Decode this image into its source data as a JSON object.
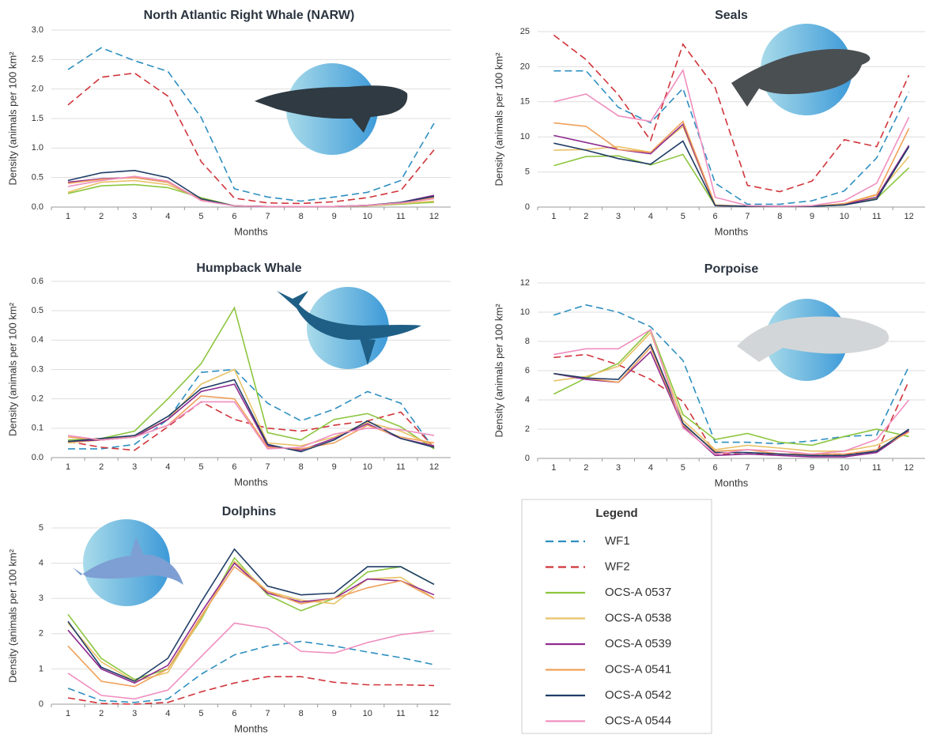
{
  "chart_data": [
    {
      "type": "line",
      "title": "North Atlantic Right Whale (NARW)",
      "y_label": "Density (animals per 100 km²",
      "x_label": "Months",
      "categories": [
        "1",
        "2",
        "3",
        "4",
        "5",
        "6",
        "7",
        "8",
        "9",
        "10",
        "11",
        "12"
      ],
      "ylim": [
        0,
        3
      ],
      "yticks": [
        {
          "value": 0,
          "label": "0.0"
        },
        0.5,
        {
          "value": 1,
          "label": "1.0"
        },
        1.5,
        {
          "value": 2,
          "label": "2.0"
        },
        2.5,
        {
          "value": 3,
          "label": "3.0"
        }
      ],
      "grid": true,
      "series": [
        {
          "values": [
            2.33,
            2.7,
            2.48,
            2.3,
            1.52,
            0.31,
            0.17,
            0.1,
            0.17,
            0.25,
            0.45,
            1.42
          ]
        },
        {
          "values": [
            1.73,
            2.2,
            2.27,
            1.88,
            0.77,
            0.15,
            0.07,
            0.06,
            0.09,
            0.16,
            0.28,
            0.97
          ]
        },
        {
          "values": [
            0.23,
            0.36,
            0.38,
            0.33,
            0.16,
            0.02,
            0.01,
            0.01,
            0.01,
            0.02,
            0.05,
            0.08
          ]
        },
        {
          "values": [
            0.25,
            0.42,
            0.45,
            0.38,
            0.14,
            0.02,
            0.01,
            0.01,
            0.01,
            0.02,
            0.06,
            0.1
          ]
        },
        {
          "values": [
            0.42,
            0.48,
            0.5,
            0.42,
            0.12,
            0.02,
            0.01,
            0.01,
            0.01,
            0.03,
            0.08,
            0.2
          ]
        },
        {
          "values": [
            0.4,
            0.47,
            0.5,
            0.42,
            0.13,
            0.02,
            0.01,
            0.01,
            0.01,
            0.03,
            0.07,
            0.16
          ]
        },
        {
          "values": [
            0.45,
            0.58,
            0.62,
            0.5,
            0.14,
            0.02,
            0.01,
            0.01,
            0.01,
            0.03,
            0.08,
            0.18
          ]
        },
        {
          "values": [
            0.35,
            0.45,
            0.52,
            0.44,
            0.11,
            0.02,
            0.01,
            0.01,
            0.01,
            0.03,
            0.07,
            0.14
          ]
        }
      ]
    },
    {
      "type": "line",
      "title": "Seals",
      "y_label": "Density (animals per 100 km²",
      "x_label": "Months",
      "categories": [
        "1",
        "2",
        "3",
        "4",
        "5",
        "6",
        "7",
        "8",
        "9",
        "10",
        "11",
        "12"
      ],
      "ylim": [
        0,
        25
      ],
      "yticks": [
        0,
        5,
        10,
        15,
        20,
        25
      ],
      "grid": true,
      "series": [
        {
          "values": [
            19.4,
            19.4,
            14.2,
            12.0,
            16.9,
            3.4,
            0.4,
            0.4,
            0.9,
            2.3,
            7.0,
            16.4
          ]
        },
        {
          "values": [
            24.5,
            21.0,
            16.0,
            9.5,
            23.2,
            17.0,
            3.1,
            2.2,
            3.7,
            9.6,
            8.6,
            18.8
          ]
        },
        {
          "values": [
            5.9,
            7.2,
            7.3,
            6.0,
            7.5,
            0.2,
            0.1,
            0.1,
            0.1,
            0.3,
            1.2,
            5.6
          ]
        },
        {
          "values": [
            8.1,
            8.2,
            8.6,
            7.8,
            11.5,
            0.2,
            0.1,
            0.1,
            0.1,
            0.4,
            1.7,
            7.2
          ]
        },
        {
          "values": [
            10.2,
            9.2,
            8.2,
            7.6,
            11.8,
            0.2,
            0.1,
            0.1,
            0.1,
            0.4,
            1.4,
            8.8
          ]
        },
        {
          "values": [
            12.0,
            11.5,
            8.2,
            7.8,
            12.2,
            0.3,
            0.1,
            0.1,
            0.1,
            0.5,
            1.8,
            11.2
          ]
        },
        {
          "values": [
            9.1,
            8.1,
            6.9,
            6.1,
            9.4,
            0.2,
            0.1,
            0.1,
            0.1,
            0.3,
            1.1,
            8.6
          ]
        },
        {
          "values": [
            15.0,
            16.1,
            13.0,
            12.2,
            19.5,
            1.4,
            0.2,
            0.1,
            0.2,
            0.9,
            3.4,
            12.8
          ]
        }
      ]
    },
    {
      "type": "line",
      "title": "Humpback Whale",
      "y_label": "Density (animals per 100 km²",
      "x_label": "Months",
      "categories": [
        "1",
        "2",
        "3",
        "4",
        "5",
        "6",
        "7",
        "8",
        "9",
        "10",
        "11",
        "12"
      ],
      "ylim": [
        0,
        0.6
      ],
      "yticks": [
        {
          "value": 0,
          "label": "0.0"
        },
        0.1,
        0.2,
        0.3,
        0.4,
        0.5,
        0.6
      ],
      "grid": true,
      "series": [
        {
          "values": [
            0.03,
            0.03,
            0.045,
            0.13,
            0.29,
            0.3,
            0.185,
            0.125,
            0.165,
            0.225,
            0.185,
            0.03
          ]
        },
        {
          "values": [
            0.055,
            0.035,
            0.025,
            0.105,
            0.19,
            0.13,
            0.1,
            0.09,
            0.11,
            0.125,
            0.155,
            0.035
          ]
        },
        {
          "values": [
            0.06,
            0.065,
            0.09,
            0.2,
            0.32,
            0.51,
            0.085,
            0.06,
            0.13,
            0.15,
            0.105,
            0.03
          ]
        },
        {
          "values": [
            0.05,
            0.06,
            0.075,
            0.13,
            0.25,
            0.3,
            0.05,
            0.04,
            0.07,
            0.12,
            0.09,
            0.04
          ]
        },
        {
          "values": [
            0.055,
            0.06,
            0.07,
            0.13,
            0.225,
            0.25,
            0.04,
            0.025,
            0.065,
            0.115,
            0.065,
            0.04
          ]
        },
        {
          "values": [
            0.07,
            0.06,
            0.07,
            0.11,
            0.21,
            0.2,
            0.035,
            0.03,
            0.05,
            0.11,
            0.07,
            0.05
          ]
        },
        {
          "values": [
            0.055,
            0.065,
            0.075,
            0.14,
            0.235,
            0.265,
            0.045,
            0.02,
            0.06,
            0.125,
            0.065,
            0.035
          ]
        },
        {
          "values": [
            0.075,
            0.06,
            0.07,
            0.11,
            0.19,
            0.19,
            0.03,
            0.035,
            0.08,
            0.1,
            0.095,
            0.075
          ]
        }
      ]
    },
    {
      "type": "line",
      "title": "Porpoise",
      "y_label": "Density (animals per 100 km²",
      "x_label": "Months",
      "categories": [
        "1",
        "2",
        "3",
        "4",
        "5",
        "6",
        "7",
        "8",
        "9",
        "10",
        "11",
        "12"
      ],
      "ylim": [
        0,
        12
      ],
      "yticks": [
        0,
        2,
        4,
        6,
        8,
        10,
        12
      ],
      "grid": true,
      "series": [
        {
          "values": [
            9.8,
            10.5,
            10.0,
            9.0,
            6.7,
            1.1,
            1.1,
            1.0,
            1.2,
            1.5,
            1.6,
            6.3
          ]
        },
        {
          "values": [
            6.9,
            7.1,
            6.4,
            5.4,
            3.9,
            0.3,
            0.3,
            0.3,
            0.3,
            0.3,
            0.4,
            5.3
          ]
        },
        {
          "values": [
            4.4,
            5.5,
            6.5,
            8.8,
            3.0,
            1.3,
            1.7,
            1.1,
            0.9,
            1.5,
            2.0,
            1.5
          ]
        },
        {
          "values": [
            5.3,
            5.6,
            6.3,
            8.6,
            2.6,
            0.6,
            0.9,
            0.7,
            0.5,
            0.5,
            0.9,
            1.9
          ]
        },
        {
          "values": [
            5.8,
            5.4,
            5.2,
            7.3,
            2.2,
            0.2,
            0.3,
            0.2,
            0.1,
            0.1,
            0.4,
            1.9
          ]
        },
        {
          "values": [
            5.8,
            5.5,
            5.2,
            7.6,
            2.3,
            0.5,
            0.6,
            0.3,
            0.3,
            0.3,
            0.6,
            1.8
          ]
        },
        {
          "values": [
            5.8,
            5.5,
            5.4,
            7.8,
            2.4,
            0.4,
            0.4,
            0.3,
            0.2,
            0.2,
            0.5,
            2.0
          ]
        },
        {
          "values": [
            7.1,
            7.5,
            7.5,
            8.8,
            2.1,
            0.3,
            0.6,
            0.5,
            0.3,
            0.5,
            1.3,
            4.0
          ]
        }
      ]
    },
    {
      "type": "line",
      "title": "Dolphins",
      "y_label": "Density (animals per 100 km²",
      "x_label": "Months",
      "categories": [
        "1",
        "2",
        "3",
        "4",
        "5",
        "6",
        "7",
        "8",
        "9",
        "10",
        "11",
        "12"
      ],
      "ylim": [
        0,
        5
      ],
      "yticks": [
        0,
        1,
        2,
        3,
        4,
        5
      ],
      "grid": true,
      "series": [
        {
          "values": [
            0.45,
            0.1,
            0.05,
            0.15,
            0.85,
            1.4,
            1.65,
            1.78,
            1.65,
            1.48,
            1.32,
            1.12
          ]
        },
        {
          "values": [
            0.18,
            0.02,
            0.0,
            0.05,
            0.35,
            0.6,
            0.78,
            0.78,
            0.62,
            0.55,
            0.55,
            0.53
          ]
        },
        {
          "values": [
            2.55,
            1.3,
            0.7,
            1.0,
            2.4,
            4.15,
            3.1,
            2.65,
            3.0,
            3.75,
            3.9,
            3.4
          ]
        },
        {
          "values": [
            2.3,
            1.2,
            0.65,
            0.9,
            2.45,
            4.05,
            3.2,
            2.95,
            2.85,
            3.55,
            3.6,
            3.0
          ]
        },
        {
          "values": [
            2.1,
            1.0,
            0.6,
            1.1,
            2.6,
            4.0,
            3.15,
            2.9,
            3.0,
            3.55,
            3.5,
            3.1
          ]
        },
        {
          "values": [
            1.65,
            0.65,
            0.5,
            1.0,
            2.5,
            3.9,
            3.2,
            2.85,
            3.0,
            3.3,
            3.5,
            3.0
          ]
        },
        {
          "values": [
            2.35,
            1.05,
            0.65,
            1.3,
            2.9,
            4.4,
            3.35,
            3.1,
            3.15,
            3.9,
            3.9,
            3.4
          ]
        },
        {
          "values": [
            0.88,
            0.25,
            0.15,
            0.4,
            1.35,
            2.3,
            2.15,
            1.5,
            1.45,
            1.75,
            1.97,
            2.08
          ]
        }
      ]
    }
  ],
  "legend": {
    "title": "Legend",
    "entries": [
      {
        "name": "WF1",
        "color": "#2e8fc0",
        "dash": true
      },
      {
        "name": "WF2",
        "color": "#d0343a",
        "dash": true
      },
      {
        "name": "OCS-A 0537",
        "color": "#8dc63f",
        "dash": false
      },
      {
        "name": "OCS-A 0538",
        "color": "#e8c267",
        "dash": false
      },
      {
        "name": "OCS-A 0539",
        "color": "#8e2b8f",
        "dash": false
      },
      {
        "name": "OCS-A 0541",
        "color": "#f0a05a",
        "dash": false
      },
      {
        "name": "OCS-A 0542",
        "color": "#1f3d66",
        "dash": false
      },
      {
        "name": "OCS-A 0544",
        "color": "#ef8fbf",
        "dash": false
      }
    ]
  }
}
